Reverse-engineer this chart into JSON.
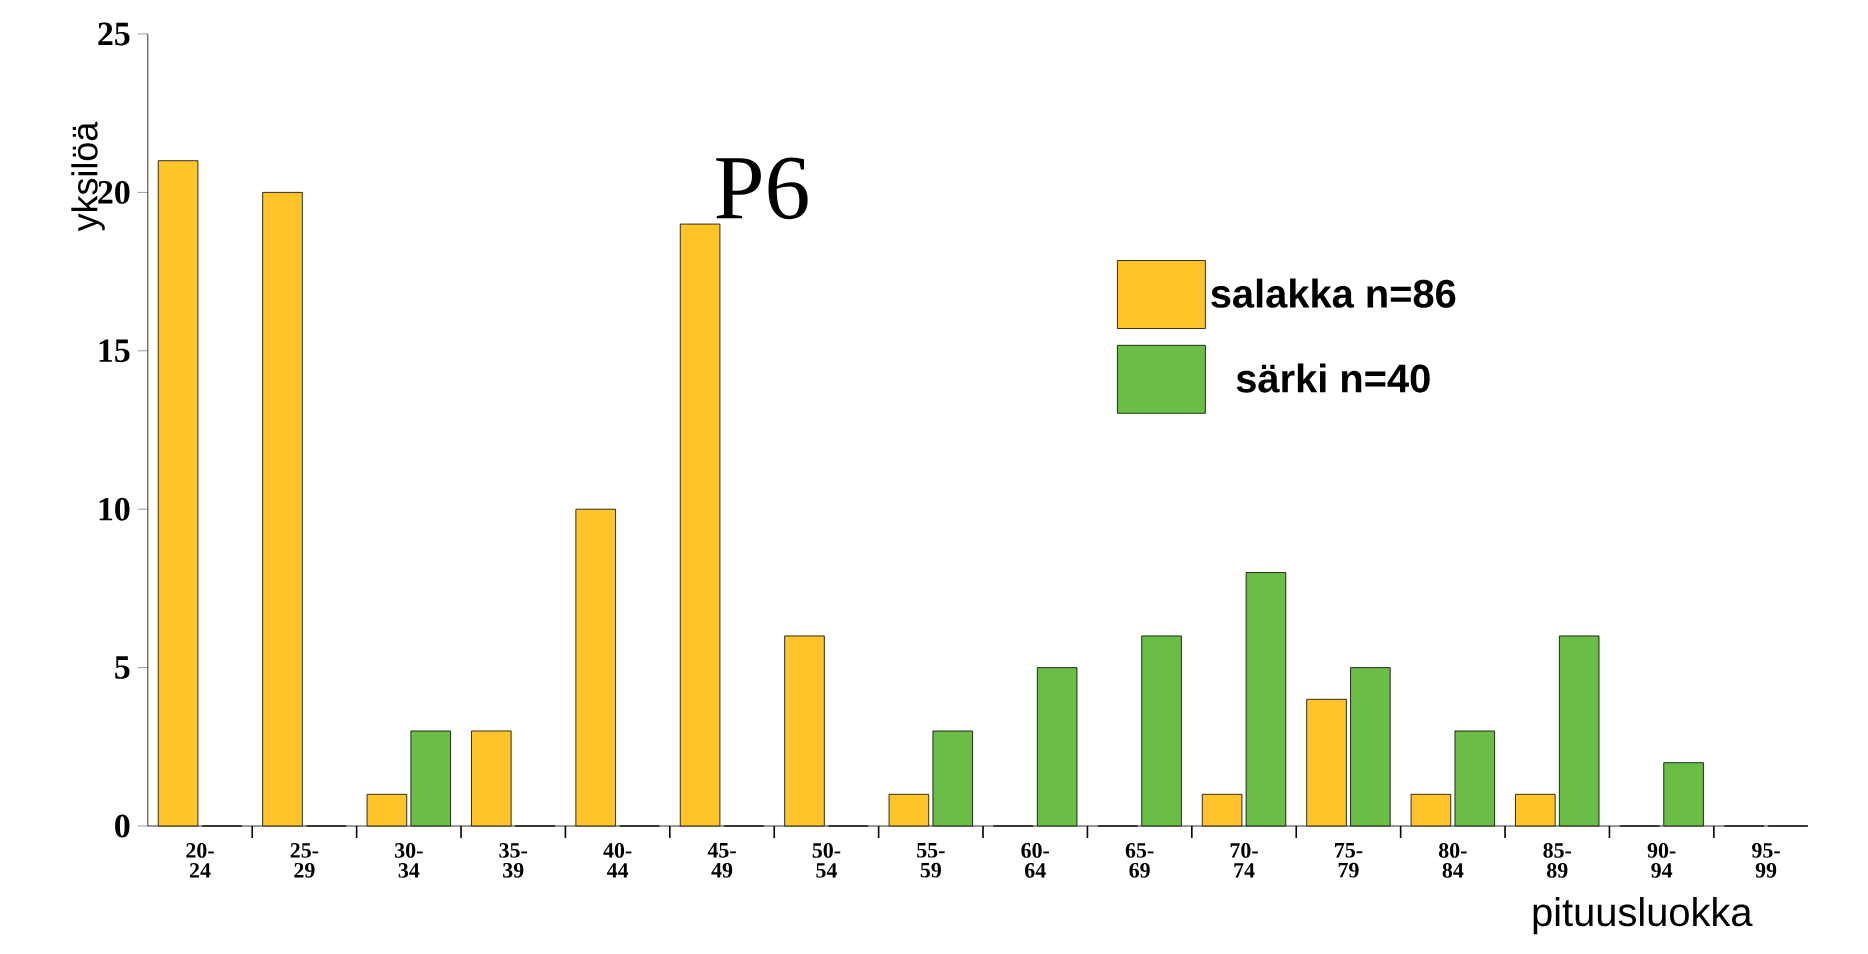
{
  "chart_data": {
    "type": "bar",
    "title": "P6",
    "xlabel": "pituusluokka",
    "ylabel": "yksilöä",
    "categories": [
      "20-24",
      "25-29",
      "30-34",
      "35-39",
      "40-44",
      "45-49",
      "50-54",
      "55-59",
      "60-64",
      "65-69",
      "70-74",
      "75-79",
      "80-84",
      "85-89",
      "90-94",
      "95-99"
    ],
    "series": [
      {
        "name": "salakka n=86",
        "color": "#fec42a",
        "values": [
          21,
          20,
          1,
          3,
          10,
          19,
          6,
          1,
          0,
          0,
          1,
          4,
          1,
          1,
          0,
          0
        ]
      },
      {
        "name": "särki n=40",
        "color": "#6abd45",
        "values": [
          0,
          0,
          3,
          0,
          0,
          0,
          0,
          3,
          5,
          6,
          8,
          5,
          3,
          6,
          2,
          0
        ]
      }
    ],
    "ylim": [
      0,
      25
    ],
    "yticks": [
      0,
      5,
      10,
      15,
      20,
      25
    ],
    "grid": false,
    "legend": "top right"
  }
}
